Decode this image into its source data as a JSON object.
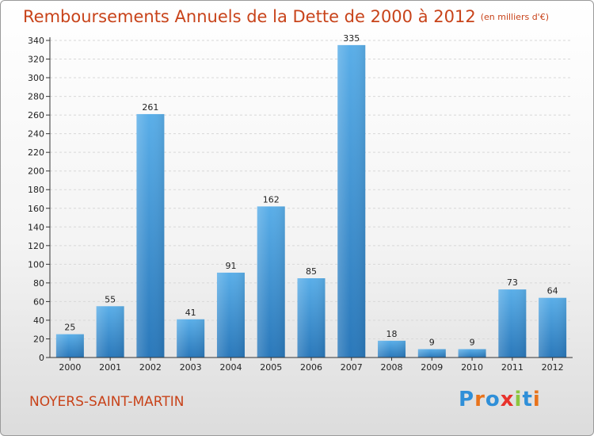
{
  "page": {
    "title": "Remboursements Annuels de la Dette de 2000 à 2012",
    "subtitle": "(en milliers d'€)",
    "commune": "NOYERS-SAINT-MARTIN",
    "logo": [
      "P",
      "r",
      "o",
      "x",
      "i",
      "t",
      "i"
    ],
    "logo_colors": [
      "#2f8fd8",
      "#e8731c",
      "#2f8fd8",
      "#e8322c",
      "#8cc63f",
      "#2f8fd8",
      "#e8731c"
    ]
  },
  "chart_data": {
    "type": "bar",
    "categories": [
      "2000",
      "2001",
      "2002",
      "2003",
      "2004",
      "2005",
      "2006",
      "2007",
      "2008",
      "2009",
      "2010",
      "2011",
      "2012"
    ],
    "values": [
      25,
      55,
      261,
      41,
      91,
      162,
      85,
      335,
      18,
      9,
      9,
      73,
      64
    ],
    "ylim": [
      0,
      340
    ],
    "yticks": [
      0,
      20,
      40,
      60,
      80,
      100,
      120,
      140,
      160,
      180,
      200,
      220,
      240,
      260,
      280,
      300,
      320,
      340
    ],
    "grid": true,
    "bar_color": "#3d98dc",
    "bar_color_dark": "#2a78ba"
  }
}
